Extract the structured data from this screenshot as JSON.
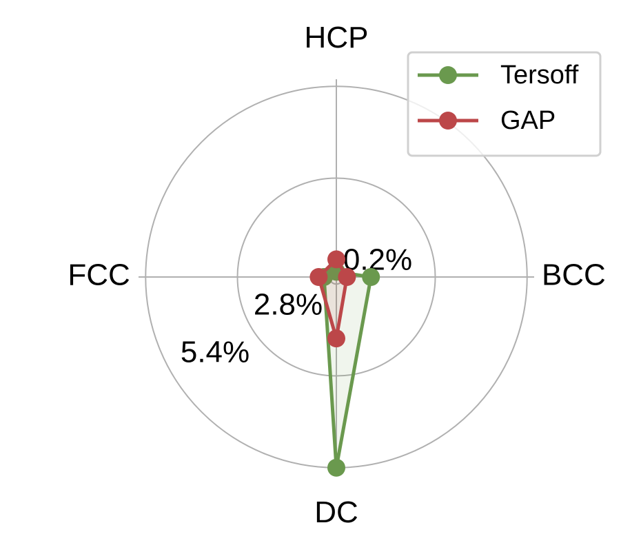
{
  "chart_data": {
    "type": "radar",
    "categories": [
      "BCC",
      "HCP",
      "FCC",
      "DC"
    ],
    "series": [
      {
        "name": "Tersoff",
        "color": "#6a994e",
        "values": [
          0.98,
          0.15,
          0.35,
          5.4
        ]
      },
      {
        "name": "GAP",
        "color": "#bc4749",
        "values": [
          0.3,
          0.5,
          0.5,
          1.74
        ]
      }
    ],
    "rlim": [
      0,
      5.6
    ],
    "rticks": [
      {
        "value": 0.2,
        "label": "0.2%"
      },
      {
        "value": 2.8,
        "label": "2.8%"
      },
      {
        "value": 5.4,
        "label": "5.4%"
      }
    ],
    "grid": true,
    "legend": "upper right"
  }
}
